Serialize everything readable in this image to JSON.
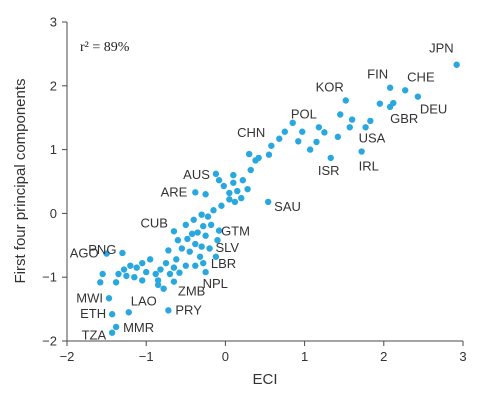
{
  "chart_data": {
    "type": "scatter",
    "xlabel": "ECI",
    "ylabel": "First four principal components",
    "xlim": [
      -2,
      3
    ],
    "ylim": [
      -2,
      3
    ],
    "xticks": [
      "−2",
      "−1",
      "0",
      "1",
      "2",
      "3"
    ],
    "yticks": [
      "−2",
      "−1",
      "0",
      "1",
      "2",
      "3"
    ],
    "annotation": "r² = 89%",
    "point_color": "#29a8e0",
    "labeled_points": [
      {
        "label": "JPN",
        "x": 2.92,
        "y": 2.33
      },
      {
        "label": "FIN",
        "x": 2.08,
        "y": 1.97
      },
      {
        "label": "CHE",
        "x": 2.27,
        "y": 1.93
      },
      {
        "label": "KOR",
        "x": 1.52,
        "y": 1.77
      },
      {
        "label": "DEU",
        "x": 2.43,
        "y": 1.83
      },
      {
        "label": "GBR",
        "x": 2.08,
        "y": 1.67
      },
      {
        "label": "POL",
        "x": 1.18,
        "y": 1.35
      },
      {
        "label": "USA",
        "x": 1.77,
        "y": 1.35
      },
      {
        "label": "CHN",
        "x": 0.58,
        "y": 1.06
      },
      {
        "label": "ISR",
        "x": 1.33,
        "y": 0.87
      },
      {
        "label": "IRL",
        "x": 1.72,
        "y": 0.97
      },
      {
        "label": "AUS",
        "x": -0.12,
        "y": 0.62
      },
      {
        "label": "ARE",
        "x": -0.38,
        "y": 0.33
      },
      {
        "label": "SAU",
        "x": 0.54,
        "y": 0.18
      },
      {
        "label": "CUB",
        "x": -0.65,
        "y": -0.28
      },
      {
        "label": "GTM",
        "x": -0.08,
        "y": -0.27
      },
      {
        "label": "SLV",
        "x": -0.1,
        "y": -0.42
      },
      {
        "label": "PNG",
        "x": -1.3,
        "y": -0.62
      },
      {
        "label": "AGO",
        "x": -1.5,
        "y": -0.63
      },
      {
        "label": "LBR",
        "x": -0.12,
        "y": -0.68
      },
      {
        "label": "NPL",
        "x": -0.25,
        "y": -0.92
      },
      {
        "label": "ZMB",
        "x": -0.65,
        "y": -1.07
      },
      {
        "label": "MWI",
        "x": -1.47,
        "y": -1.33
      },
      {
        "label": "LAO",
        "x": -1.22,
        "y": -1.55
      },
      {
        "label": "PRY",
        "x": -0.72,
        "y": -1.52
      },
      {
        "label": "ETH",
        "x": -1.43,
        "y": -1.58
      },
      {
        "label": "MMR",
        "x": -1.38,
        "y": -1.78
      },
      {
        "label": "TZA",
        "x": -1.43,
        "y": -1.87
      }
    ],
    "unlabeled_points": [
      [
        1.83,
        1.45
      ],
      [
        1.95,
        1.72
      ],
      [
        2.12,
        1.73
      ],
      [
        1.45,
        1.55
      ],
      [
        1.6,
        1.47
      ],
      [
        1.57,
        1.35
      ],
      [
        1.42,
        1.2
      ],
      [
        1.25,
        1.27
      ],
      [
        1.15,
        1.12
      ],
      [
        1.07,
        1.0
      ],
      [
        0.97,
        1.28
      ],
      [
        0.92,
        1.13
      ],
      [
        0.85,
        1.42
      ],
      [
        0.75,
        1.28
      ],
      [
        0.68,
        1.17
      ],
      [
        0.55,
        0.92
      ],
      [
        0.42,
        0.87
      ],
      [
        0.38,
        0.83
      ],
      [
        0.3,
        0.93
      ],
      [
        0.32,
        0.68
      ],
      [
        0.22,
        0.52
      ],
      [
        0.1,
        0.48
      ],
      [
        0.05,
        0.32
      ],
      [
        0.28,
        0.38
      ],
      [
        0.15,
        0.35
      ],
      [
        -0.08,
        0.52
      ],
      [
        -0.02,
        0.43
      ],
      [
        0.1,
        0.6
      ],
      [
        -0.25,
        0.3
      ],
      [
        0.05,
        0.22
      ],
      [
        0.2,
        0.24
      ],
      [
        0.12,
        0.18
      ],
      [
        -0.15,
        0.05
      ],
      [
        -0.05,
        0.12
      ],
      [
        -0.3,
        -0.02
      ],
      [
        -0.4,
        -0.1
      ],
      [
        -0.22,
        -0.05
      ],
      [
        -0.18,
        -0.18
      ],
      [
        -0.28,
        -0.2
      ],
      [
        -0.5,
        -0.18
      ],
      [
        -0.42,
        -0.32
      ],
      [
        -0.35,
        -0.3
      ],
      [
        -0.25,
        -0.35
      ],
      [
        -0.48,
        -0.4
      ],
      [
        -0.6,
        -0.42
      ],
      [
        -0.38,
        -0.48
      ],
      [
        -0.3,
        -0.52
      ],
      [
        -0.2,
        -0.55
      ],
      [
        -0.55,
        -0.55
      ],
      [
        -0.45,
        -0.6
      ],
      [
        -0.32,
        -0.68
      ],
      [
        -0.62,
        -0.72
      ],
      [
        -0.72,
        -0.58
      ],
      [
        -0.5,
        -0.82
      ],
      [
        -0.38,
        -0.82
      ],
      [
        -0.28,
        -0.78
      ],
      [
        -0.65,
        -0.85
      ],
      [
        -0.75,
        -0.78
      ],
      [
        -0.82,
        -0.88
      ],
      [
        -0.88,
        -0.95
      ],
      [
        -0.7,
        -0.95
      ],
      [
        -0.58,
        -0.93
      ],
      [
        -0.95,
        -0.72
      ],
      [
        -1.05,
        -0.78
      ],
      [
        -1.0,
        -0.92
      ],
      [
        -1.12,
        -0.85
      ],
      [
        -1.2,
        -0.82
      ],
      [
        -1.28,
        -0.88
      ],
      [
        -1.25,
        -0.98
      ],
      [
        -1.15,
        -1.0
      ],
      [
        -1.05,
        -1.05
      ],
      [
        -1.35,
        -0.95
      ],
      [
        -1.38,
        -1.08
      ],
      [
        -1.55,
        -0.95
      ],
      [
        -1.58,
        -1.08
      ],
      [
        -0.85,
        -1.05
      ],
      [
        -0.85,
        -1.12
      ],
      [
        -0.78,
        -1.18
      ]
    ]
  }
}
